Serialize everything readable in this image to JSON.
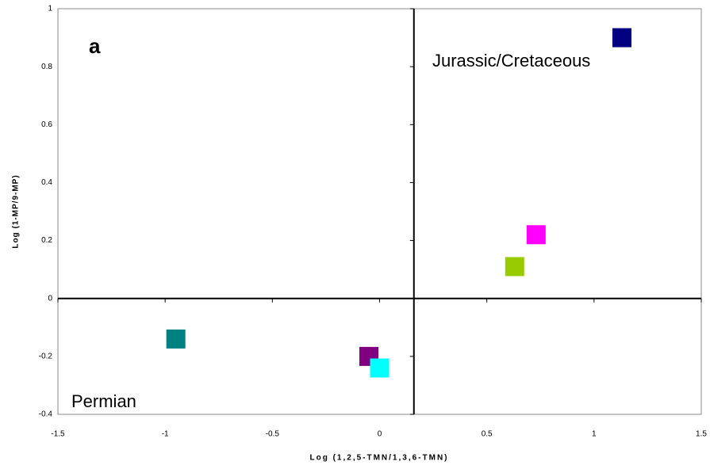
{
  "chart_data": {
    "type": "scatter",
    "xlabel": "Log (1,2,5-TMN/1,3,6-TMN)",
    "ylabel": "Log (1-MP/9-MP)",
    "x": [
      -0.95,
      -0.05,
      0.0,
      0.63,
      0.73,
      1.13
    ],
    "values": [
      -0.14,
      -0.2,
      -0.24,
      0.11,
      0.22,
      0.9
    ],
    "colors": [
      "#008080",
      "#800080",
      "#00ffff",
      "#99cc00",
      "#ff00ff",
      "#000080"
    ],
    "xlim": [
      -1.5,
      1.5
    ],
    "ylim": [
      -0.4,
      1
    ],
    "xticks": [
      -1.5,
      -1,
      -0.5,
      0,
      0.5,
      1,
      1.5
    ],
    "yticks": [
      -0.4,
      -0.2,
      0,
      0.2,
      0.4,
      0.6,
      0.8,
      1
    ],
    "divider_x": 0.16,
    "annotations": [
      "a",
      "Jurassic/Cretaceous",
      "Permian"
    ]
  }
}
